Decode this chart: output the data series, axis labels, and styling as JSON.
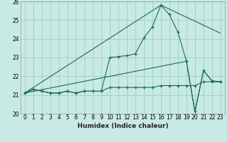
{
  "xlabel": "Humidex (Indice chaleur)",
  "xlim": [
    -0.5,
    23.5
  ],
  "ylim": [
    20.0,
    26.0
  ],
  "yticks": [
    20,
    21,
    22,
    23,
    24,
    25,
    26
  ],
  "xticks": [
    0,
    1,
    2,
    3,
    4,
    5,
    6,
    7,
    8,
    9,
    10,
    11,
    12,
    13,
    14,
    15,
    16,
    17,
    18,
    19,
    20,
    21,
    22,
    23
  ],
  "bg_color": "#c8eae4",
  "grid_color": "#a0ccc4",
  "line_color": "#1a6b5a",
  "line1_x": [
    0,
    1,
    2,
    3,
    4,
    5,
    6,
    7,
    8,
    9,
    10,
    11,
    12,
    13,
    14,
    15,
    16,
    17,
    18,
    19,
    20,
    21,
    22,
    23
  ],
  "line1_y": [
    21.1,
    21.3,
    21.2,
    21.1,
    21.1,
    21.2,
    21.1,
    21.2,
    21.2,
    21.2,
    21.4,
    21.4,
    21.4,
    21.4,
    21.4,
    21.4,
    21.5,
    21.5,
    21.5,
    21.5,
    21.5,
    21.7,
    21.7,
    21.7
  ],
  "line2_x": [
    0,
    1,
    2,
    3,
    4,
    5,
    6,
    7,
    8,
    9,
    10,
    11,
    12,
    13,
    14,
    15,
    16,
    17,
    18,
    19,
    20,
    21,
    22,
    23
  ],
  "line2_y": [
    21.1,
    21.3,
    21.2,
    21.1,
    21.1,
    21.2,
    21.1,
    21.2,
    21.2,
    21.2,
    23.0,
    23.05,
    23.1,
    23.2,
    24.05,
    24.65,
    25.8,
    25.3,
    24.35,
    22.8,
    20.1,
    22.3,
    21.75,
    21.7
  ],
  "line3_x": [
    0,
    16,
    23
  ],
  "line3_y": [
    21.1,
    25.8,
    24.3
  ],
  "line4_x": [
    0,
    19,
    20,
    21,
    22,
    23
  ],
  "line4_y": [
    21.1,
    22.8,
    20.1,
    22.3,
    21.75,
    21.7
  ]
}
